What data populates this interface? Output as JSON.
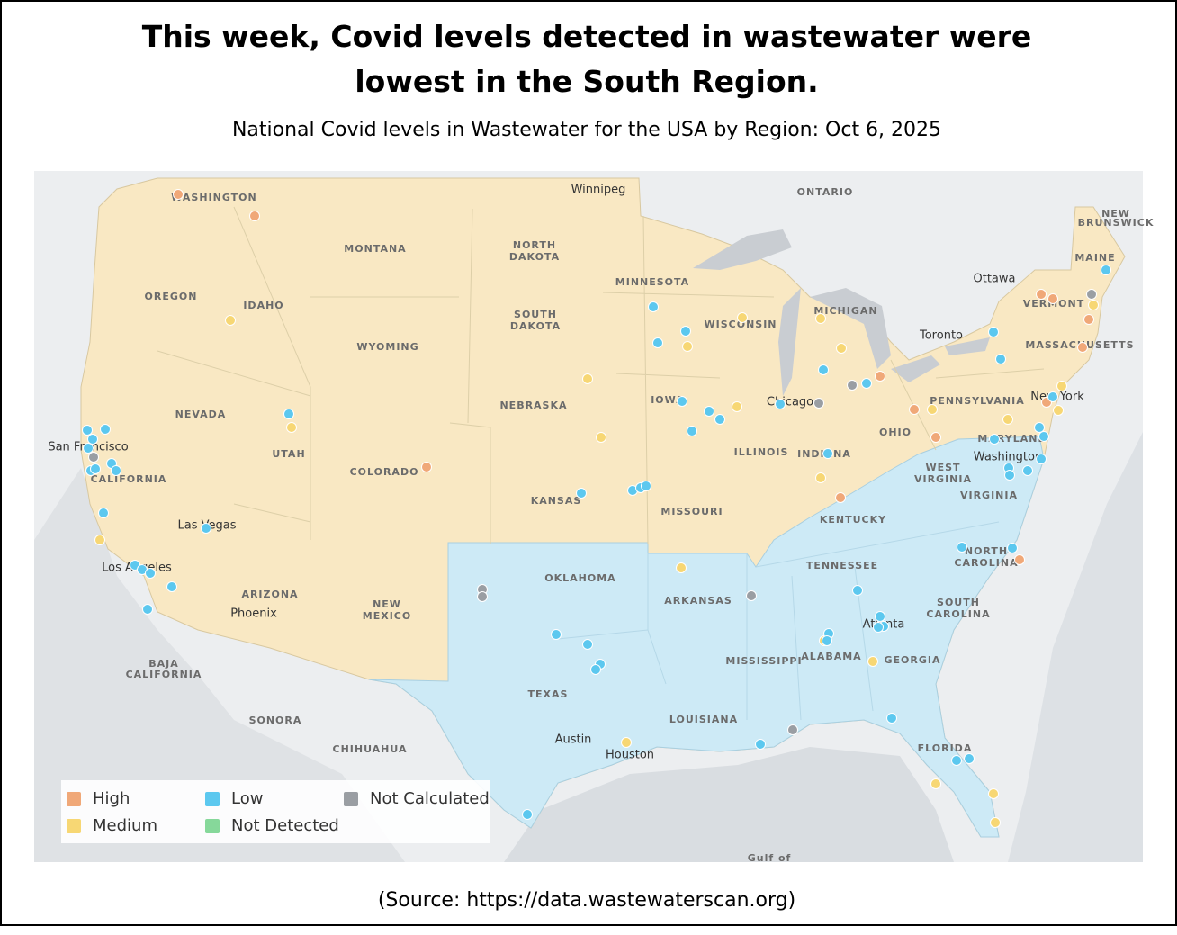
{
  "header": {
    "title": "This week, Covid levels detected in wastewater were lowest in the South Region.",
    "subtitle": "National Covid levels in Wastewater for the USA by Region: Oct 6, 2025"
  },
  "map_labels": [
    "WASHINGTON",
    "MONTANA",
    "OREGON",
    "IDAHO",
    "WYOMING",
    "NORTH",
    "DAKOTA",
    "SOUTH",
    "DAKOTA",
    "MINNESOTA",
    "WISCONSIN",
    "MICHIGAN",
    "NEVADA",
    "UTAH",
    "COLORADO",
    "NEBRASKA",
    "IOWA",
    "ILLINOIS",
    "INDIANA",
    "OHIO",
    "PENNSYLVANIA",
    "KANSAS",
    "MISSOURI",
    "CALIFORNIA",
    "ARIZONA",
    "NEW",
    "MEXICO",
    "OKLAHOMA",
    "ARKANSAS",
    "TENNESSEE",
    "KENTUCKY",
    "WEST",
    "VIRGINIA",
    "VIRGINIA",
    "NORTH",
    "CAROLINA",
    "SOUTH",
    "CAROLINA",
    "GEORGIA",
    "ALABAMA",
    "MISSISSIPPI",
    "TEXAS",
    "LOUISIANA",
    "FLORIDA",
    "ONTARIO",
    "MAINE",
    "VERMONT",
    "MASSACHUSETTS",
    "NEW",
    "BRUNSWICK",
    "BAJA",
    "CALIFORNIA",
    "SONORA",
    "CHIHUAHUA",
    "MARYLAND",
    "Gulf of"
  ],
  "city_labels": [
    "San Francisco",
    "Las Vegas",
    "Los Angeles",
    "Phoenix",
    "Washington",
    "New York",
    "Atlanta",
    "Austin",
    "Houston",
    "Chicago",
    "Toronto",
    "Ottawa",
    "Winnipeg"
  ],
  "legend": [
    {
      "label": "High",
      "color": "#f0a878"
    },
    {
      "label": "Medium",
      "color": "#f7d774"
    },
    {
      "label": "Low",
      "color": "#5cc8ef"
    },
    {
      "label": "Not Detected",
      "color": "#86d89a"
    },
    {
      "label": "Not Calculated",
      "color": "#9a9ea3"
    }
  ],
  "source": "(Source: https://data.wastewaterscan.org)"
}
